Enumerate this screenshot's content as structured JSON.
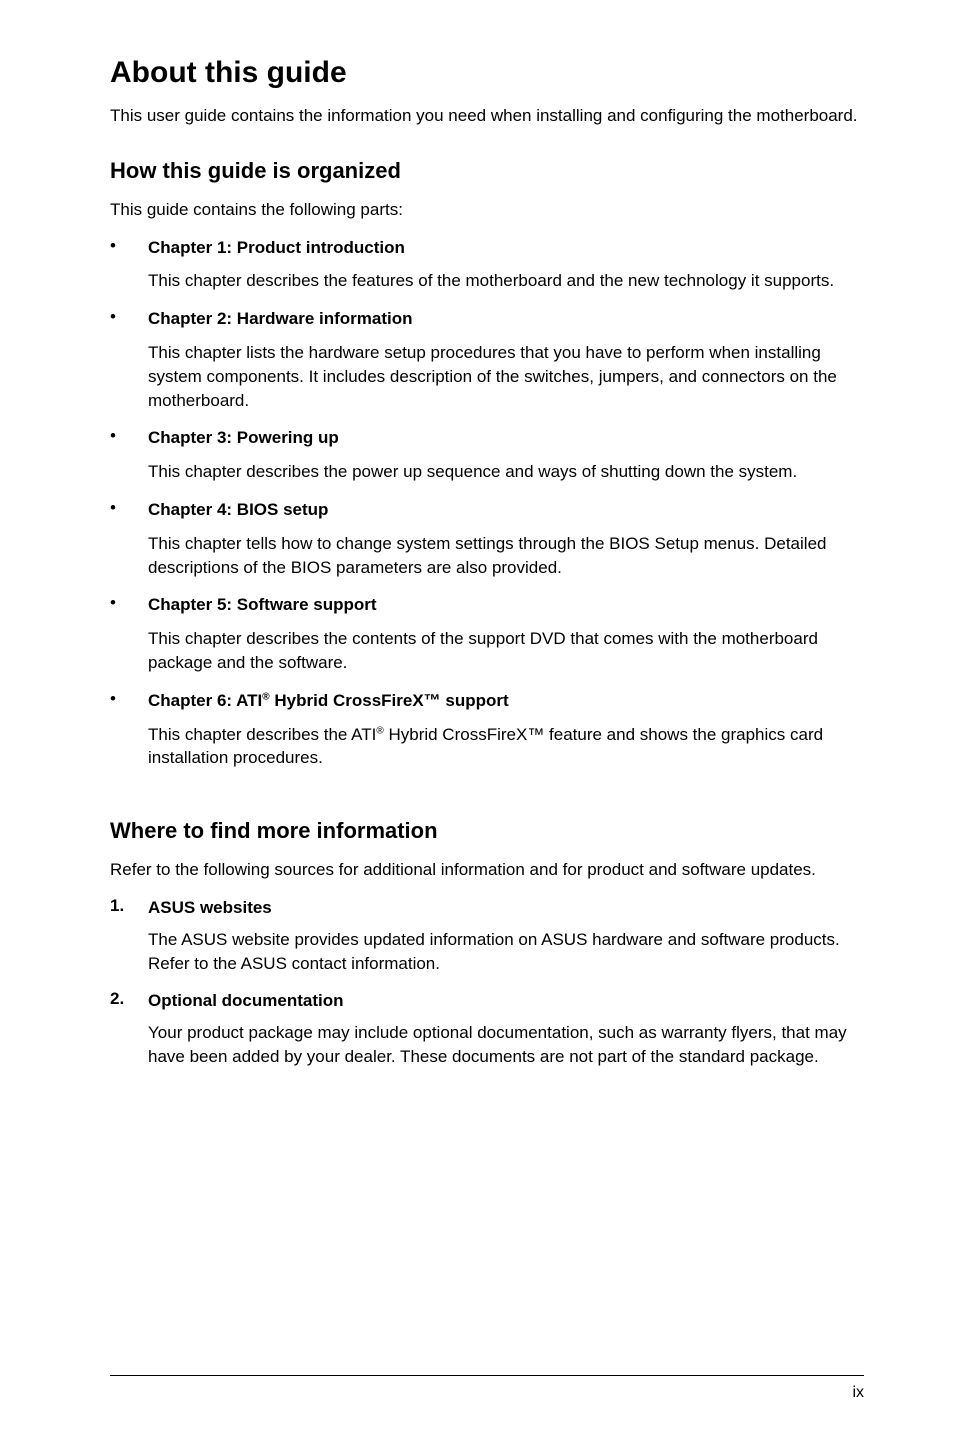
{
  "title": "About this guide",
  "intro": "This user guide contains the information you need when installing and configuring the motherboard.",
  "organized": {
    "heading": "How this guide is organized",
    "intro": "This guide contains the following parts:",
    "chapters": [
      {
        "title": "Chapter 1: Product introduction",
        "desc": "This chapter describes the features of the motherboard and the new technology it supports."
      },
      {
        "title": "Chapter 2: Hardware information",
        "desc": "This chapter lists the hardware setup procedures that you have to perform when installing system components. It includes description of the switches, jumpers, and connectors on the motherboard."
      },
      {
        "title": "Chapter 3: Powering up",
        "desc": "This chapter describes the power up sequence and ways of shutting down the system."
      },
      {
        "title": "Chapter 4: BIOS setup",
        "desc": "This chapter tells how to change system settings through the BIOS Setup menus. Detailed descriptions of the BIOS parameters are also provided."
      },
      {
        "title": "Chapter 5: Software support",
        "desc": "This chapter describes the contents of the support DVD that comes with the motherboard package and the software."
      },
      {
        "title_pre": "Chapter 6: ATI",
        "title_sup": "®",
        "title_post": " Hybrid CrossFireX™ support",
        "desc_pre": "This chapter describes the ATI",
        "desc_sup": "®",
        "desc_post": " Hybrid CrossFireX™ feature and shows the graphics card installation procedures."
      }
    ]
  },
  "where": {
    "heading": "Where to find more information",
    "intro": "Refer to the following sources for additional information and for product and software updates.",
    "items": [
      {
        "num": "1.",
        "title": "ASUS websites",
        "desc": "The ASUS website provides updated information on ASUS hardware and software products. Refer to the ASUS contact information."
      },
      {
        "num": "2.",
        "title": "Optional documentation",
        "desc": "Your product package may include optional documentation, such as warranty flyers, that may have been added by your dealer. These documents are not part of the standard package."
      }
    ]
  },
  "page_num": "ix"
}
